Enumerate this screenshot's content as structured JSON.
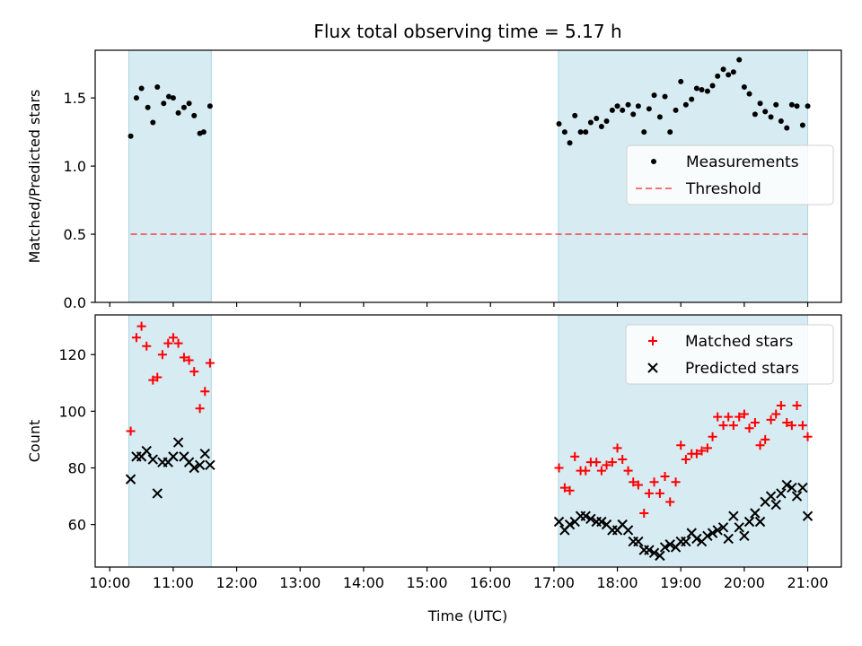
{
  "chart_data": {
    "title": "Flux total observing time = 5.17 h",
    "xlabel": "Time (UTC)",
    "x_ticks": [
      "10:00",
      "11:00",
      "12:00",
      "13:00",
      "14:00",
      "15:00",
      "16:00",
      "17:00",
      "18:00",
      "19:00",
      "20:00",
      "21:00"
    ],
    "x_range_hours": [
      9.77,
      21.53
    ],
    "shaded_intervals_hours": [
      [
        10.3,
        11.6
      ],
      [
        17.07,
        21.0
      ]
    ],
    "shade_color": "#add8e6",
    "panels": [
      {
        "type": "scatter",
        "ylabel": "Matched/Predicted stars",
        "ylim": [
          0,
          1.85
        ],
        "y_ticks": [
          0.0,
          0.5,
          1.0,
          1.5
        ],
        "y_tick_labels": [
          "0.0",
          "0.5",
          "1.0",
          "1.5"
        ],
        "legend": {
          "position": "center-right",
          "entries": [
            "Measurements",
            "Threshold"
          ]
        },
        "series": [
          {
            "name": "Measurements",
            "color": "#000000",
            "marker": "dot",
            "x": [
              10.33,
              10.42,
              10.5,
              10.6,
              10.68,
              10.75,
              10.85,
              10.93,
              11.0,
              11.08,
              11.17,
              11.25,
              11.33,
              11.42,
              11.48,
              11.58,
              17.08,
              17.17,
              17.25,
              17.33,
              17.42,
              17.5,
              17.58,
              17.67,
              17.75,
              17.83,
              17.92,
              18.0,
              18.08,
              18.17,
              18.25,
              18.33,
              18.42,
              18.5,
              18.58,
              18.67,
              18.75,
              18.83,
              18.92,
              19.0,
              19.08,
              19.17,
              19.25,
              19.33,
              19.42,
              19.5,
              19.58,
              19.67,
              19.75,
              19.83,
              19.92,
              20.0,
              20.08,
              20.17,
              20.25,
              20.33,
              20.42,
              20.5,
              20.58,
              20.67,
              20.75,
              20.83,
              20.92,
              21.0
            ],
            "y": [
              1.22,
              1.5,
              1.57,
              1.43,
              1.32,
              1.58,
              1.46,
              1.51,
              1.5,
              1.39,
              1.43,
              1.46,
              1.37,
              1.24,
              1.25,
              1.44,
              1.31,
              1.25,
              1.17,
              1.37,
              1.25,
              1.25,
              1.32,
              1.35,
              1.29,
              1.33,
              1.41,
              1.44,
              1.41,
              1.45,
              1.38,
              1.44,
              1.25,
              1.42,
              1.52,
              1.36,
              1.51,
              1.25,
              1.41,
              1.62,
              1.45,
              1.49,
              1.57,
              1.56,
              1.55,
              1.59,
              1.66,
              1.71,
              1.67,
              1.69,
              1.78,
              1.58,
              1.53,
              1.38,
              1.46,
              1.4,
              1.36,
              1.45,
              1.33,
              1.28,
              1.45,
              1.44,
              1.3,
              1.44
            ]
          },
          {
            "name": "Threshold",
            "color": "#ff0000",
            "line": "dashed",
            "x": [
              10.33,
              21.0
            ],
            "y": [
              0.5,
              0.5
            ]
          }
        ]
      },
      {
        "type": "scatter",
        "ylabel": "Count",
        "ylim": [
          45,
          134
        ],
        "y_ticks": [
          60,
          80,
          100,
          120
        ],
        "y_tick_labels": [
          "60",
          "80",
          "100",
          "120"
        ],
        "legend": {
          "position": "top-right",
          "entries": [
            "Matched stars",
            "Predicted stars"
          ]
        },
        "series": [
          {
            "name": "Matched stars",
            "color": "#ff0000",
            "marker": "plus",
            "x": [
              10.33,
              10.42,
              10.5,
              10.58,
              10.68,
              10.75,
              10.83,
              10.92,
              11.0,
              11.08,
              11.17,
              11.25,
              11.33,
              11.42,
              11.5,
              11.58,
              17.08,
              17.17,
              17.25,
              17.33,
              17.42,
              17.5,
              17.58,
              17.67,
              17.75,
              17.83,
              17.92,
              18.0,
              18.08,
              18.17,
              18.25,
              18.33,
              18.42,
              18.5,
              18.58,
              18.67,
              18.75,
              18.83,
              18.92,
              19.0,
              19.08,
              19.17,
              19.25,
              19.33,
              19.42,
              19.5,
              19.58,
              19.67,
              19.75,
              19.83,
              19.92,
              20.0,
              20.08,
              20.17,
              20.25,
              20.33,
              20.42,
              20.5,
              20.58,
              20.67,
              20.75,
              20.83,
              20.92,
              21.0
            ],
            "y": [
              93,
              126,
              130,
              123,
              111,
              112,
              120,
              124,
              126,
              124,
              119,
              118,
              114,
              101,
              107,
              117,
              80,
              73,
              72,
              84,
              79,
              79,
              82,
              82,
              79,
              81,
              82,
              87,
              83,
              79,
              75,
              74,
              64,
              71,
              75,
              71,
              77,
              68,
              75,
              88,
              83,
              85,
              85,
              86,
              87,
              91,
              98,
              95,
              98,
              95,
              98,
              99,
              94,
              96,
              88,
              90,
              97,
              99,
              102,
              96,
              95,
              102,
              95,
              91
            ]
          },
          {
            "name": "Predicted stars",
            "color": "#000000",
            "marker": "x",
            "x": [
              10.33,
              10.42,
              10.5,
              10.58,
              10.68,
              10.75,
              10.83,
              10.92,
              11.0,
              11.08,
              11.17,
              11.25,
              11.33,
              11.42,
              11.5,
              11.58,
              17.08,
              17.17,
              17.25,
              17.33,
              17.42,
              17.5,
              17.58,
              17.67,
              17.75,
              17.83,
              17.92,
              18.0,
              18.08,
              18.17,
              18.25,
              18.33,
              18.42,
              18.5,
              18.58,
              18.67,
              18.75,
              18.83,
              18.92,
              19.0,
              19.08,
              19.17,
              19.25,
              19.33,
              19.42,
              19.5,
              19.58,
              19.67,
              19.75,
              19.83,
              19.92,
              20.0,
              20.08,
              20.17,
              20.25,
              20.33,
              20.42,
              20.5,
              20.58,
              20.67,
              20.75,
              20.83,
              20.92,
              21.0
            ],
            "y": [
              76,
              84,
              84,
              86,
              83,
              71,
              82,
              82,
              84,
              89,
              84,
              82,
              80,
              81,
              85,
              81,
              61,
              58,
              60,
              61,
              63,
              63,
              62,
              61,
              61,
              60,
              58,
              58,
              60,
              58,
              54,
              54,
              51,
              51,
              50,
              49,
              52,
              53,
              52,
              54,
              54,
              57,
              55,
              54,
              56,
              57,
              58,
              59,
              55,
              63,
              59,
              56,
              61,
              64,
              61,
              68,
              70,
              67,
              71,
              74,
              73,
              70,
              73,
              63
            ]
          }
        ]
      }
    ]
  }
}
